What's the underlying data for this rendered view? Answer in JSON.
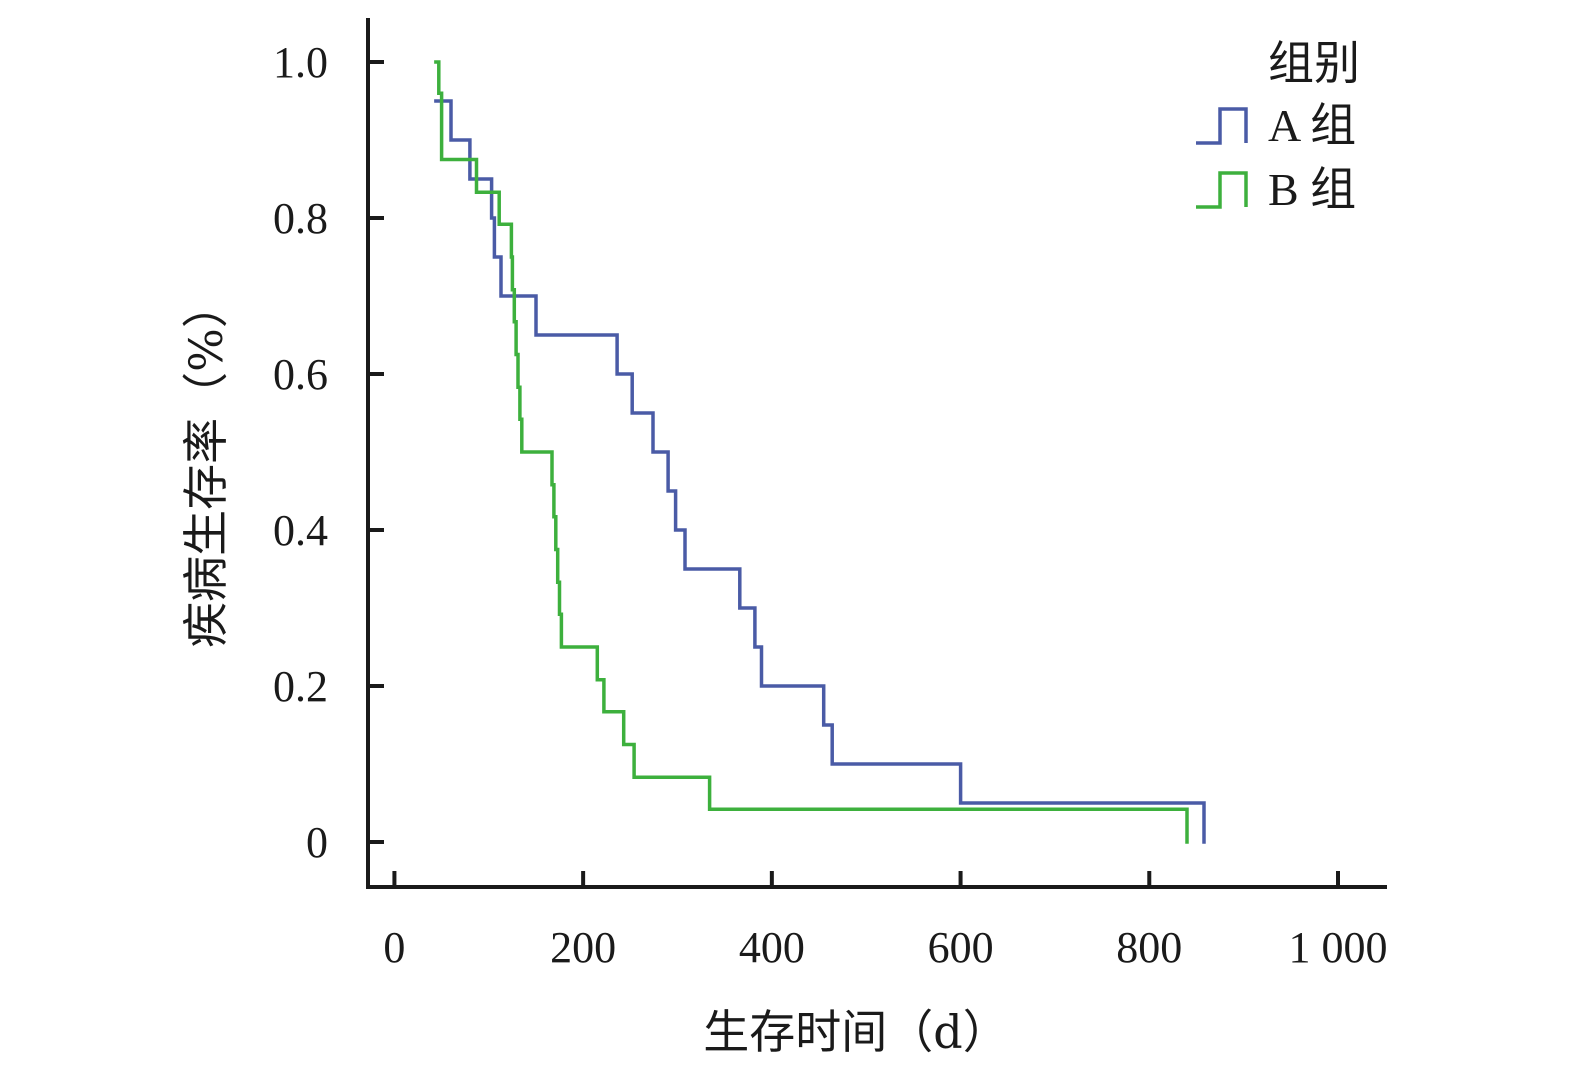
{
  "chart_data": {
    "type": "line",
    "subtype": "kaplan-meier step",
    "title": "",
    "xlabel": "生存时间（d）",
    "ylabel": "疾病生存率（%）",
    "xlim": [
      -28,
      1000
    ],
    "ylim": [
      -0.03,
      1.05
    ],
    "xticks": [
      0,
      200,
      400,
      600,
      800,
      1000
    ],
    "xtick_labels": [
      "0",
      "200",
      "400",
      "600",
      "800",
      "1 000"
    ],
    "yticks": [
      0,
      0.2,
      0.4,
      0.6,
      0.8,
      1.0
    ],
    "ytick_labels": [
      "0",
      "0.2",
      "0.4",
      "0.6",
      "0.8",
      "1.0"
    ],
    "grid": false,
    "legend": {
      "title": "组别",
      "placement": "top-right"
    },
    "series": [
      {
        "name": "A 组",
        "color": "#4a5ba6",
        "start": [
          44,
          0.95
        ],
        "steps": [
          [
            60,
            0.9
          ],
          [
            80,
            0.85
          ],
          [
            103,
            0.8
          ],
          [
            106,
            0.75
          ],
          [
            113,
            0.7
          ],
          [
            150,
            0.65
          ],
          [
            236,
            0.6
          ],
          [
            252,
            0.55
          ],
          [
            274,
            0.5
          ],
          [
            290,
            0.45
          ],
          [
            298,
            0.4
          ],
          [
            308,
            0.35
          ],
          [
            366,
            0.3
          ],
          [
            382,
            0.25
          ],
          [
            389,
            0.2
          ],
          [
            455,
            0.15
          ],
          [
            464,
            0.1
          ],
          [
            600,
            0.05
          ],
          [
            858,
            0.0
          ]
        ]
      },
      {
        "name": "B 组",
        "color": "#3db03d",
        "start": [
          44,
          1.0
        ],
        "steps": [
          [
            47,
            0.96
          ],
          [
            50,
            0.875
          ],
          [
            87,
            0.833
          ],
          [
            111,
            0.792
          ],
          [
            124,
            0.75
          ],
          [
            125,
            0.708
          ],
          [
            127,
            0.667
          ],
          [
            129,
            0.625
          ],
          [
            131,
            0.583
          ],
          [
            133,
            0.542
          ],
          [
            135,
            0.5
          ],
          [
            167,
            0.458
          ],
          [
            169,
            0.417
          ],
          [
            171,
            0.375
          ],
          [
            173,
            0.333
          ],
          [
            175,
            0.292
          ],
          [
            177,
            0.25
          ],
          [
            215,
            0.208
          ],
          [
            222,
            0.167
          ],
          [
            243,
            0.125
          ],
          [
            254,
            0.083
          ],
          [
            334,
            0.042
          ],
          [
            840,
            0.0
          ]
        ]
      }
    ]
  }
}
